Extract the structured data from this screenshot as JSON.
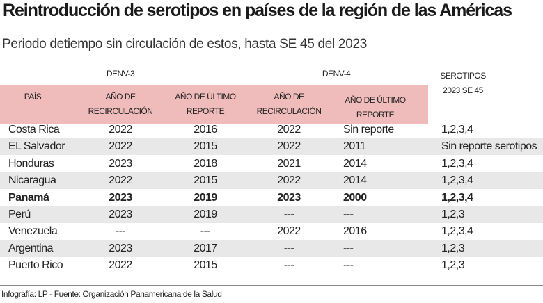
{
  "title": "Reintroducción de serotipos en países de la región de las Américas",
  "subtitle": "Periodo detiempo sin circulación de estos, hasta SE 45 del 2023",
  "groups": {
    "denv3": "DENV-3",
    "denv4": "DENV-4"
  },
  "serotipos_header": {
    "line1": "SEROTIPOS",
    "line2": "2023 SE 45"
  },
  "columns": {
    "pais": "PAÍS",
    "d3_recirc": {
      "line1": "AÑO DE",
      "line2": "RECIRCULACIÓN"
    },
    "d3_ultimo": {
      "line1": "AÑO DE ÚLTIMO",
      "line2": "REPORTE"
    },
    "d4_recirc": {
      "line1": "AÑO DE",
      "line2": "RECIRCULACIÓN"
    },
    "d4_ultimo": {
      "line1": "AÑO DE ÚLTIMO",
      "line2": "REPORTE"
    }
  },
  "rows": [
    [
      "Costa Rica",
      "2022",
      "2016",
      "2022",
      "Sin reporte",
      "1,2,3,4"
    ],
    [
      "EL Salvador",
      "2022",
      "2015",
      "2022",
      "2011",
      "Sin reporte serotipos"
    ],
    [
      "Honduras",
      "2023",
      "2018",
      "2021",
      "2014",
      "1,2,3,4"
    ],
    [
      "Nicaragua",
      "2022",
      "2015",
      "2022",
      "2014",
      "1,2,3,4"
    ],
    [
      "Panamá",
      "2023",
      "2019",
      "2023",
      "2000",
      "1,2,3,4"
    ],
    [
      "Perú",
      "2023",
      "2019",
      "---",
      "---",
      "1,2,3"
    ],
    [
      "Venezuela",
      "---",
      "---",
      "2022",
      "2016",
      "1,2,3,4"
    ],
    [
      "Argentina",
      "2023",
      "2017",
      "---",
      "---",
      "1,2,3"
    ],
    [
      "Puerto Rico",
      "2022",
      "2015",
      "---",
      "---",
      "1,2,3"
    ]
  ],
  "highlight_row": "Panamá",
  "colors": {
    "header_band": "#f0bcbb",
    "alt_row": "#e8e8e8"
  },
  "footer": "Infografía: LP - Fuente: Organización Panamericana de la Salud"
}
